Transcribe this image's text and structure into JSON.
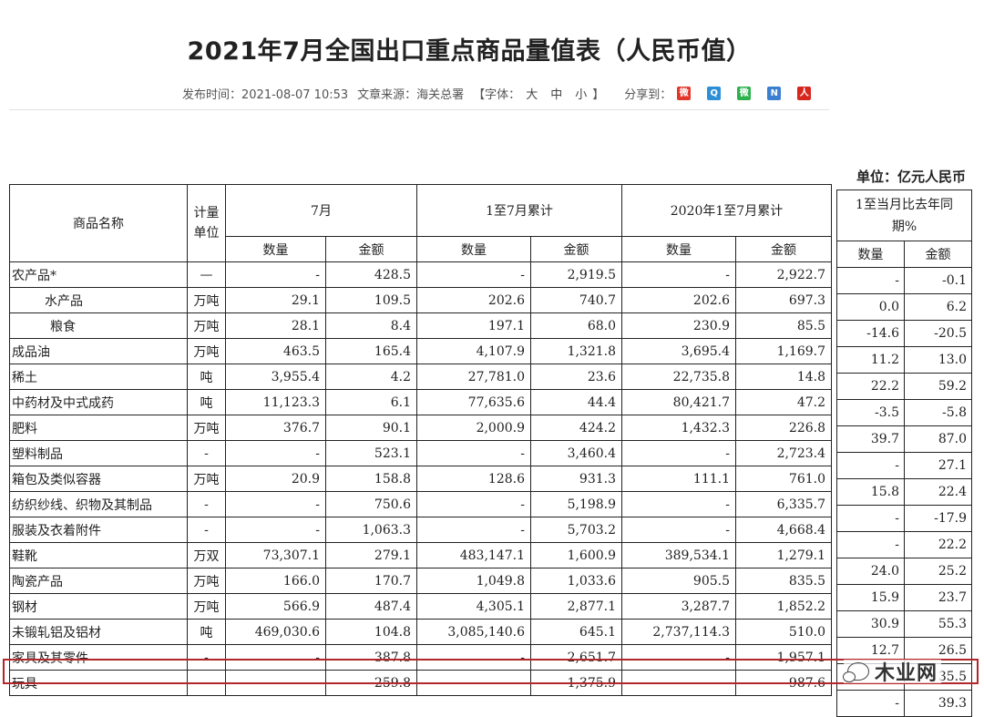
{
  "title": "2021年7月全国出口重点商品量值表（人民币值）",
  "meta": {
    "publish": "发布时间：2021-08-07 10:53",
    "source": "文章来源：海关总署",
    "font_label": "【字体：",
    "font_large": "大",
    "font_medium": "中",
    "font_small": "小",
    "font_close": "】",
    "share_label": "分享到："
  },
  "share_icons": [
    {
      "name": "weibo-icon",
      "color": "#e2362b",
      "glyph": "微"
    },
    {
      "name": "qzone-icon",
      "color": "#2d8fd6",
      "glyph": "Q"
    },
    {
      "name": "wechat-icon",
      "color": "#2bb24c",
      "glyph": "微"
    },
    {
      "name": "news-icon",
      "color": "#3b7fd1",
      "glyph": "N"
    },
    {
      "name": "renren-icon",
      "color": "#d7261e",
      "glyph": "人"
    }
  ],
  "unit": "单位：亿元人民币",
  "header": {
    "name": "商品名称",
    "unit": "计量单位",
    "jul": "7月",
    "ytd": "1至7月累计",
    "ytd2020": "2020年1至7月累计",
    "qty": "数量",
    "amt": "金额"
  },
  "side_header": {
    "title": "1至当月比去年同期%",
    "qty": "数量",
    "amt": "金额"
  },
  "rows": [
    {
      "name": "农产品*",
      "unit": "—",
      "q7": "-",
      "a7": "428.5",
      "qy": "-",
      "ay": "2,919.5",
      "q20": "-",
      "a20": "2,922.7",
      "pq": "-",
      "pa": "-0.1",
      "indent": 0
    },
    {
      "name": "水产品",
      "unit": "万吨",
      "q7": "29.1",
      "a7": "109.5",
      "qy": "202.6",
      "ay": "740.7",
      "q20": "202.6",
      "a20": "697.3",
      "pq": "0.0",
      "pa": "6.2",
      "indent": 1
    },
    {
      "name": "粮食",
      "unit": "万吨",
      "q7": "28.1",
      "a7": "8.4",
      "qy": "197.1",
      "ay": "68.0",
      "q20": "230.9",
      "a20": "85.5",
      "pq": "-14.6",
      "pa": "-20.5",
      "indent": 2
    },
    {
      "name": "成品油",
      "unit": "万吨",
      "q7": "463.5",
      "a7": "165.4",
      "qy": "4,107.9",
      "ay": "1,321.8",
      "q20": "3,695.4",
      "a20": "1,169.7",
      "pq": "11.2",
      "pa": "13.0",
      "indent": 0
    },
    {
      "name": "稀土",
      "unit": "吨",
      "q7": "3,955.4",
      "a7": "4.2",
      "qy": "27,781.0",
      "ay": "23.6",
      "q20": "22,735.8",
      "a20": "14.8",
      "pq": "22.2",
      "pa": "59.2",
      "indent": 0
    },
    {
      "name": "中药材及中式成药",
      "unit": "吨",
      "q7": "11,123.3",
      "a7": "6.1",
      "qy": "77,635.6",
      "ay": "44.4",
      "q20": "80,421.7",
      "a20": "47.2",
      "pq": "-3.5",
      "pa": "-5.8",
      "indent": 0
    },
    {
      "name": "肥料",
      "unit": "万吨",
      "q7": "376.7",
      "a7": "90.1",
      "qy": "2,000.9",
      "ay": "424.2",
      "q20": "1,432.3",
      "a20": "226.8",
      "pq": "39.7",
      "pa": "87.0",
      "indent": 0
    },
    {
      "name": "塑料制品",
      "unit": "-",
      "q7": "-",
      "a7": "523.1",
      "qy": "-",
      "ay": "3,460.4",
      "q20": "-",
      "a20": "2,723.4",
      "pq": "-",
      "pa": "27.1",
      "indent": 0
    },
    {
      "name": "箱包及类似容器",
      "unit": "万吨",
      "q7": "20.9",
      "a7": "158.8",
      "qy": "128.6",
      "ay": "931.3",
      "q20": "111.1",
      "a20": "761.0",
      "pq": "15.8",
      "pa": "22.4",
      "indent": 0
    },
    {
      "name": "纺织纱线、织物及其制品",
      "unit": "-",
      "q7": "-",
      "a7": "750.6",
      "qy": "-",
      "ay": "5,198.9",
      "q20": "-",
      "a20": "6,335.7",
      "pq": "-",
      "pa": "-17.9",
      "indent": 0
    },
    {
      "name": "服装及衣着附件",
      "unit": "-",
      "q7": "-",
      "a7": "1,063.3",
      "qy": "-",
      "ay": "5,703.2",
      "q20": "-",
      "a20": "4,668.4",
      "pq": "-",
      "pa": "22.2",
      "indent": 0
    },
    {
      "name": "鞋靴",
      "unit": "万双",
      "q7": "73,307.1",
      "a7": "279.1",
      "qy": "483,147.1",
      "ay": "1,600.9",
      "q20": "389,534.1",
      "a20": "1,279.1",
      "pq": "24.0",
      "pa": "25.2",
      "indent": 0
    },
    {
      "name": "陶瓷产品",
      "unit": "万吨",
      "q7": "166.0",
      "a7": "170.7",
      "qy": "1,049.8",
      "ay": "1,033.6",
      "q20": "905.5",
      "a20": "835.5",
      "pq": "15.9",
      "pa": "23.7",
      "indent": 0
    },
    {
      "name": "钢材",
      "unit": "万吨",
      "q7": "566.9",
      "a7": "487.4",
      "qy": "4,305.1",
      "ay": "2,877.1",
      "q20": "3,287.7",
      "a20": "1,852.2",
      "pq": "30.9",
      "pa": "55.3",
      "indent": 0
    },
    {
      "name": "未锻轧铝及铝材",
      "unit": "吨",
      "q7": "469,030.6",
      "a7": "104.8",
      "qy": "3,085,140.6",
      "ay": "645.1",
      "q20": "2,737,114.3",
      "a20": "510.0",
      "pq": "12.7",
      "pa": "26.5",
      "indent": 0
    },
    {
      "name": "家具及其零件",
      "unit": "-",
      "q7": "-",
      "a7": "387.8",
      "qy": "-",
      "ay": "2,651.7",
      "q20": "-",
      "a20": "1,957.1",
      "pq": "",
      "pa": "35.5",
      "indent": 0
    },
    {
      "name": "玩具",
      "unit": "-",
      "q7": "-",
      "a7": "259.8",
      "qy": "-",
      "ay": "1,375.9",
      "q20": "-",
      "a20": "987.6",
      "pq": "-",
      "pa": "39.3",
      "indent": 0
    }
  ],
  "watermark": "木业网"
}
